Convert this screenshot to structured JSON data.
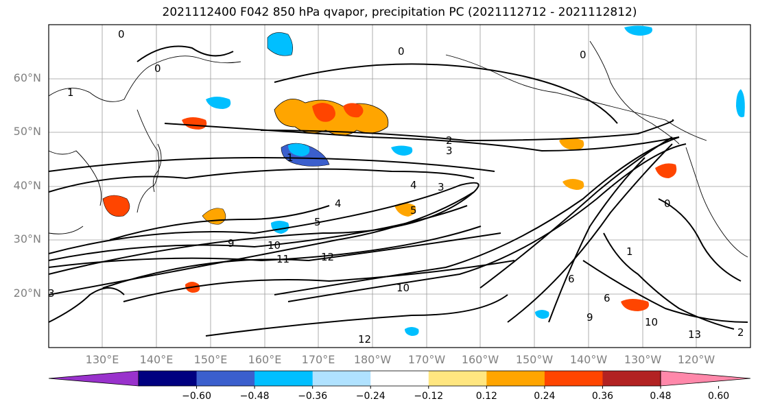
{
  "title": "2021112400 F042 850 hPa qvapor, precipitation PC (2021112712 - 2021112812)",
  "lat_labels": [
    "60°N",
    "50°N",
    "40°N",
    "30°N",
    "20°N"
  ],
  "lon_labels": [
    "130°E",
    "140°E",
    "150°E",
    "160°E",
    "170°E",
    "180°W",
    "170°W",
    "160°W",
    "150°W",
    "140°W",
    "130°W",
    "120°W"
  ],
  "contour_labels": [
    "0",
    "0",
    "0",
    "0",
    "1",
    "1",
    "2",
    "3",
    "3",
    "4",
    "4",
    "5",
    "5",
    "6",
    "9",
    "10",
    "10",
    "11",
    "12",
    "12",
    "13",
    "10",
    "9",
    "6",
    "2",
    "0",
    "1",
    "3"
  ],
  "colorbar": {
    "colors": [
      "#9932CC",
      "#000080",
      "#3B5FCD",
      "#00BFFF",
      "#B0E2FF",
      "#FFFFFF",
      "#FFE680",
      "#FFA500",
      "#FF4500",
      "#B22222",
      "#FF88AA"
    ],
    "tick_labels": [
      "−0.60",
      "−0.48",
      "−0.36",
      "−0.24",
      "−0.12",
      "0.12",
      "0.24",
      "0.36",
      "0.48",
      "0.60"
    ]
  }
}
